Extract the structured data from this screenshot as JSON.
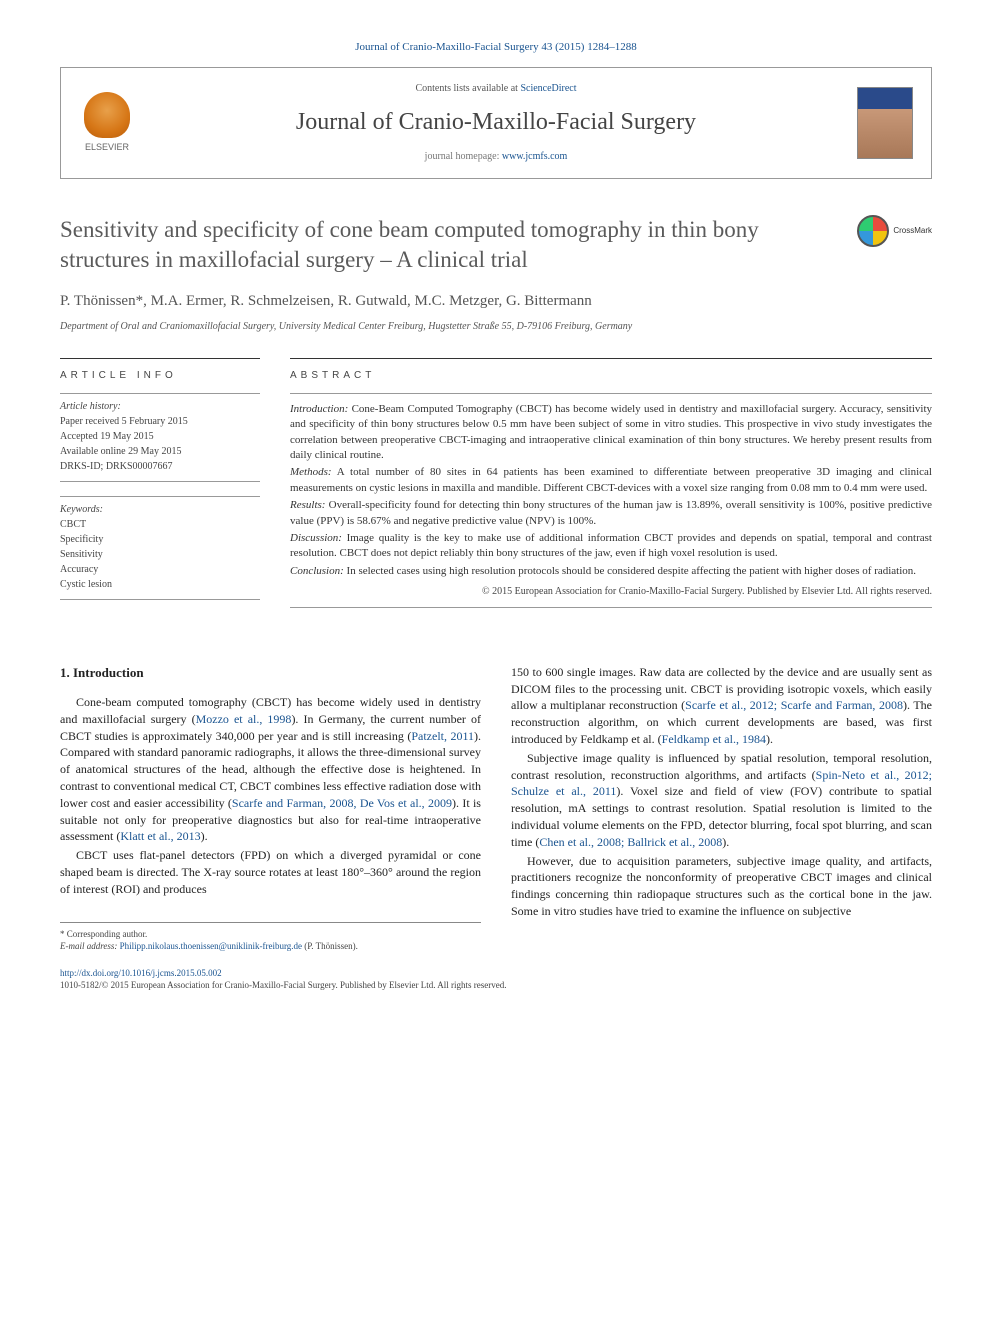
{
  "journal_ref": "Journal of Cranio-Maxillo-Facial Surgery 43 (2015) 1284–1288",
  "header": {
    "contents_prefix": "Contents lists available at ",
    "contents_link": "ScienceDirect",
    "journal_title": "Journal of Cranio-Maxillo-Facial Surgery",
    "homepage_prefix": "journal homepage: ",
    "homepage_link": "www.jcmfs.com",
    "elsevier_label": "ELSEVIER"
  },
  "crossmark_label": "CrossMark",
  "article": {
    "title": "Sensitivity and specificity of cone beam computed tomography in thin bony structures in maxillofacial surgery – A clinical trial",
    "authors": "P. Thönissen*, M.A. Ermer, R. Schmelzeisen, R. Gutwald, M.C. Metzger, G. Bittermann",
    "affiliation": "Department of Oral and Craniomaxillofacial Surgery, University Medical Center Freiburg, Hugstetter Straße 55, D-79106 Freiburg, Germany"
  },
  "info": {
    "heading": "ARTICLE INFO",
    "history_label": "Article history:",
    "received": "Paper received 5 February 2015",
    "accepted": "Accepted 19 May 2015",
    "online": "Available online 29 May 2015",
    "drks": "DRKS-ID; DRKS00007667",
    "keywords_label": "Keywords:",
    "keywords": [
      "CBCT",
      "Specificity",
      "Sensitivity",
      "Accuracy",
      "Cystic lesion"
    ]
  },
  "abstract": {
    "heading": "ABSTRACT",
    "introduction_label": "Introduction:",
    "introduction": " Cone-Beam Computed Tomography (CBCT) has become widely used in dentistry and maxillofacial surgery. Accuracy, sensitivity and specificity of thin bony structures below 0.5 mm have been subject of some in vitro studies. This prospective in vivo study investigates the correlation between preoperative CBCT-imaging and intraoperative clinical examination of thin bony structures. We hereby present results from daily clinical routine.",
    "methods_label": "Methods:",
    "methods": " A total number of 80 sites in 64 patients has been examined to differentiate between preoperative 3D imaging and clinical measurements on cystic lesions in maxilla and mandible. Different CBCT-devices with a voxel size ranging from 0.08 mm to 0.4 mm were used.",
    "results_label": "Results:",
    "results": " Overall-specificity found for detecting thin bony structures of the human jaw is 13.89%, overall sensitivity is 100%, positive predictive value (PPV) is 58.67% and negative predictive value (NPV) is 100%.",
    "discussion_label": "Discussion:",
    "discussion": " Image quality is the key to make use of additional information CBCT provides and depends on spatial, temporal and contrast resolution. CBCT does not depict reliably thin bony structures of the jaw, even if high voxel resolution is used.",
    "conclusion_label": "Conclusion:",
    "conclusion": " In selected cases using high resolution protocols should be considered despite affecting the patient with higher doses of radiation.",
    "copyright": "© 2015 European Association for Cranio-Maxillo-Facial Surgery. Published by Elsevier Ltd. All rights reserved."
  },
  "body": {
    "section_heading": "1. Introduction",
    "left": {
      "p1a": "Cone-beam computed tomography (CBCT) has become widely used in dentistry and maxillofacial surgery (",
      "p1_ref1": "Mozzo et al., 1998",
      "p1b": "). In Germany, the current number of CBCT studies is approximately 340,000 per year and is still increasing (",
      "p1_ref2": "Patzelt, 2011",
      "p1c": "). Compared with standard panoramic radiographs, it allows the three-dimensional survey of anatomical structures of the head, although the effective dose is heightened. In contrast to conventional medical CT, CBCT combines less effective radiation dose with lower cost and easier accessibility (",
      "p1_ref3": "Scarfe and Farman, 2008, De Vos et al., 2009",
      "p1d": "). It is suitable not only for preoperative diagnostics but also for real-time intraoperative assessment (",
      "p1_ref4": "Klatt et al., 2013",
      "p1e": ").",
      "p2": "CBCT uses flat-panel detectors (FPD) on which a diverged pyramidal or cone shaped beam is directed. The X-ray source rotates at least 180°–360° around the region of interest (ROI) and produces"
    },
    "right": {
      "p1a": "150 to 600 single images. Raw data are collected by the device and are usually sent as DICOM files to the processing unit. CBCT is providing isotropic voxels, which easily allow a multiplanar reconstruction (",
      "p1_ref1": "Scarfe et al., 2012; Scarfe and Farman, 2008",
      "p1b": "). The reconstruction algorithm, on which current developments are based, was first introduced by Feldkamp et al. (",
      "p1_ref2": "Feldkamp et al., 1984",
      "p1c": ").",
      "p2a": "Subjective image quality is influenced by spatial resolution, temporal resolution, contrast resolution, reconstruction algorithms, and artifacts (",
      "p2_ref1": "Spin-Neto et al., 2012; Schulze et al., 2011",
      "p2b": "). Voxel size and field of view (FOV) contribute to spatial resolution, mA settings to contrast resolution. Spatial resolution is limited to the individual volume elements on the FPD, detector blurring, focal spot blurring, and scan time (",
      "p2_ref2": "Chen et al., 2008; Ballrick et al., 2008",
      "p2c": ").",
      "p3": "However, due to acquisition parameters, subjective image quality, and artifacts, practitioners recognize the nonconformity of preoperative CBCT images and clinical findings concerning thin radiopaque structures such as the cortical bone in the jaw. Some in vitro studies have tried to examine the influence on subjective"
    }
  },
  "corresponding": {
    "label": "* Corresponding author.",
    "email_label": "E-mail address: ",
    "email": "Philipp.nikolaus.thoenissen@uniklinik-freiburg.de",
    "name_suffix": " (P. Thönissen)."
  },
  "footer": {
    "doi": "http://dx.doi.org/10.1016/j.jcms.2015.05.002",
    "issn_copyright": "1010-5182/© 2015 European Association for Cranio-Maxillo-Facial Surgery. Published by Elsevier Ltd. All rights reserved."
  },
  "colors": {
    "link": "#1a5490",
    "text": "#333333",
    "heading": "#5a5a5a"
  }
}
